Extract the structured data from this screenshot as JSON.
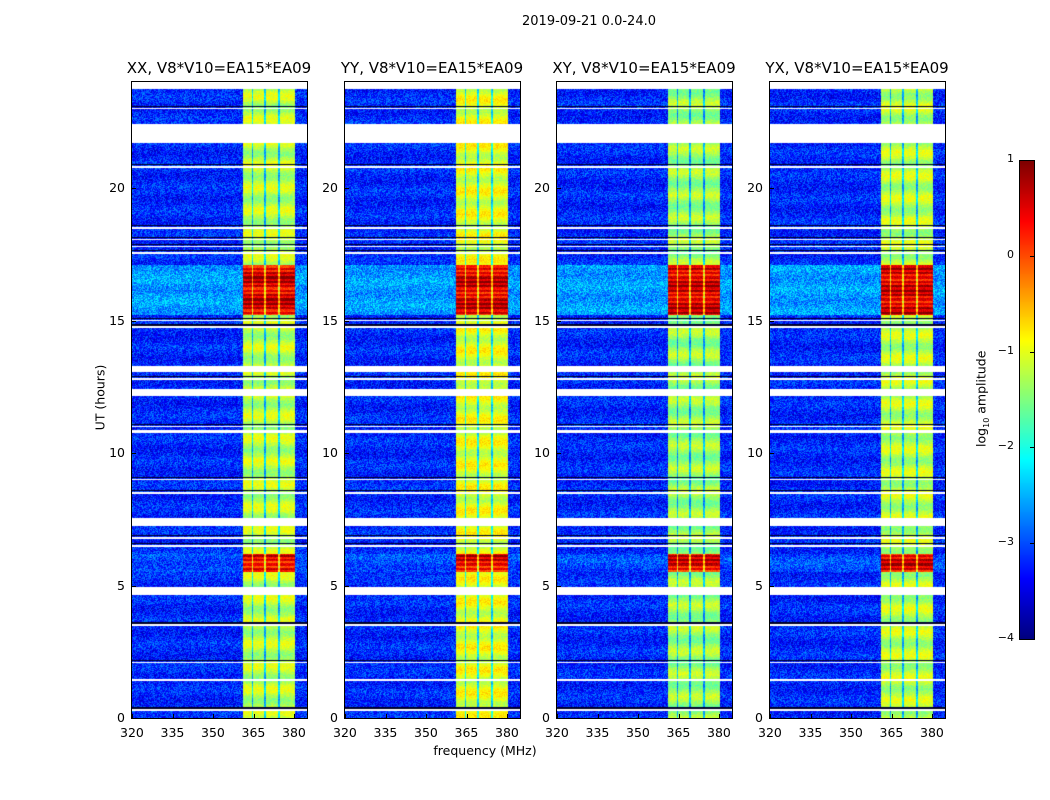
{
  "chart_data": {
    "type": "heatmap",
    "title": "2019-09-21 0.0-24.0",
    "xlabel": "frequency (MHz)",
    "ylabel": "UT (hours)",
    "xlim": [
      320,
      384.8
    ],
    "ylim": [
      0,
      24
    ],
    "xticks": [
      320,
      335,
      350,
      365,
      380
    ],
    "yticks": [
      0,
      5,
      10,
      15,
      20
    ],
    "colormap": "jet",
    "colorbar": {
      "label_prefix": "log",
      "label_sub": "10",
      "label_suffix": " amplitude",
      "range": [
        -4,
        1
      ],
      "ticks": [
        "1",
        "0",
        "−1",
        "−2",
        "−3",
        "−4"
      ],
      "tick_values": [
        1,
        0,
        -1,
        -2,
        -3,
        -4
      ]
    },
    "background_level": -3.2,
    "rfi_band_mhz": [
      361,
      380.5
    ],
    "rfi_band_dark_channels_mhz": [
      364.6,
      369.3,
      374.5
    ],
    "no_data_hours": [
      [
        23.75,
        24
      ],
      [
        21.7,
        22.4
      ],
      [
        13.05,
        13.3
      ],
      [
        12.15,
        12.4
      ],
      [
        10.75,
        10.85
      ],
      [
        7.25,
        7.55
      ],
      [
        4.65,
        4.95
      ],
      [
        1.38,
        1.48
      ]
    ],
    "thin_gap_hours": [
      23.0,
      20.8,
      18.5,
      18.05,
      17.8,
      17.55,
      15.0,
      14.75,
      12.8,
      11.0,
      9.0,
      8.5,
      6.8,
      6.5,
      3.5,
      2.1,
      0.3
    ],
    "high_amplitude_events": [
      {
        "hours": [
          15.2,
          17.1
        ],
        "band_level": 0.3,
        "background_level": -2.6
      },
      {
        "hours": [
          5.5,
          6.2
        ],
        "band_level": 0.2,
        "background_level": -3.0
      }
    ],
    "panels": [
      {
        "title": "XX, V8*V10=EA15*EA09",
        "band_level": -1.2
      },
      {
        "title": "YY, V8*V10=EA15*EA09",
        "band_level": -1.0
      },
      {
        "title": "XY, V8*V10=EA15*EA09",
        "band_level": -1.35
      },
      {
        "title": "YX, V8*V10=EA15*EA09",
        "band_level": -1.2
      }
    ]
  }
}
